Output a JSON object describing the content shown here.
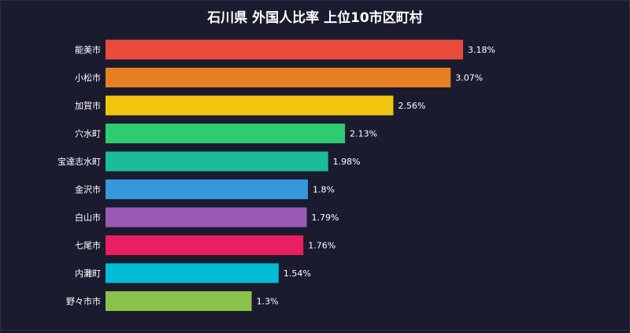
{
  "chart_data": {
    "type": "bar",
    "orientation": "horizontal",
    "title": "石川県 外国人比率 上位10市区町村",
    "categories": [
      "能美市",
      "小松市",
      "加賀市",
      "穴水町",
      "宝達志水町",
      "金沢市",
      "白山市",
      "七尾市",
      "内灘町",
      "野々市市"
    ],
    "values": [
      3.18,
      3.07,
      2.56,
      2.13,
      1.98,
      1.8,
      1.79,
      1.76,
      1.54,
      1.3
    ],
    "value_labels": [
      "3.18%",
      "3.07%",
      "2.56%",
      "2.13%",
      "1.98%",
      "1.8%",
      "1.79%",
      "1.76%",
      "1.54%",
      "1.3%"
    ],
    "colors": [
      "#e74c3c",
      "#e67e22",
      "#f1c40f",
      "#2ecc71",
      "#1abc9c",
      "#3498db",
      "#9b59b6",
      "#e91e63",
      "#00bcd4",
      "#8bc34a"
    ],
    "xlim": [
      0,
      3.18
    ],
    "xlabel": "",
    "ylabel": "",
    "grid": false,
    "legend": "none",
    "background": "#1b1b2f",
    "text_color": "#ffffff"
  }
}
